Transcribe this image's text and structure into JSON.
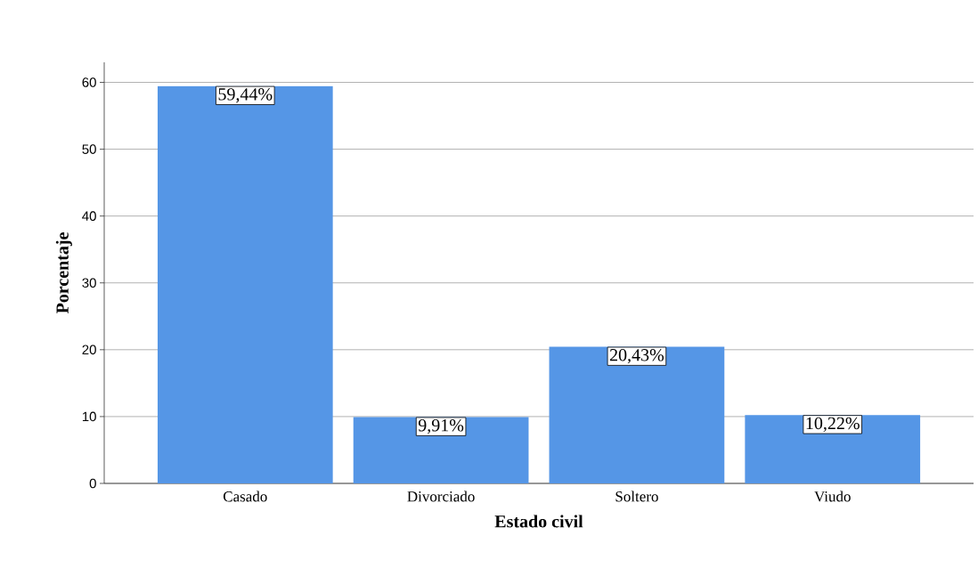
{
  "chart_data": {
    "type": "bar",
    "xlabel": "Estado civil",
    "ylabel": "Porcentaje",
    "categories": [
      "Casado",
      "Divorciado",
      "Soltero",
      "Viudo"
    ],
    "values": [
      59.44,
      9.91,
      20.43,
      10.22
    ],
    "value_labels": [
      "59,44%",
      "9,91%",
      "20,43%",
      "10,22%"
    ],
    "color": "#5596e6",
    "ylim": [
      0,
      63
    ],
    "yticks": [
      0,
      10,
      20,
      30,
      40,
      50,
      60
    ],
    "grid": "y"
  }
}
